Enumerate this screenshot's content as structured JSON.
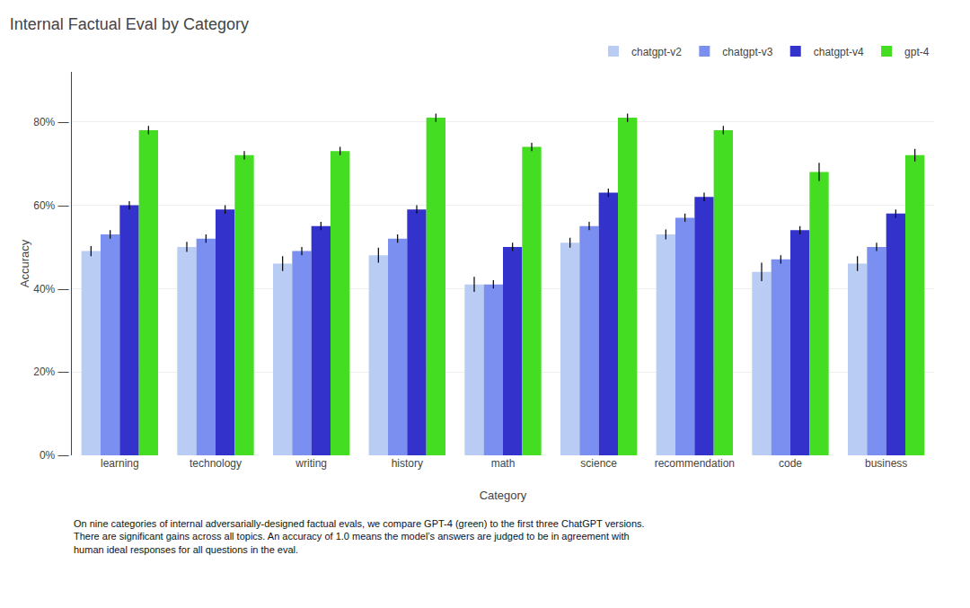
{
  "chart_data": {
    "type": "bar",
    "title": "Internal Factual Eval by Category",
    "xlabel": "Category",
    "ylabel": "Accuracy",
    "categories": [
      "learning",
      "technology",
      "writing",
      "history",
      "math",
      "science",
      "recommendation",
      "code",
      "business"
    ],
    "series": [
      {
        "name": "chatgpt-v2",
        "color": "#b8ccf4",
        "values": [
          0.49,
          0.5,
          0.46,
          0.48,
          0.41,
          0.51,
          0.53,
          0.44,
          0.46
        ],
        "errors": [
          0.012,
          0.012,
          0.018,
          0.018,
          0.018,
          0.012,
          0.012,
          0.022,
          0.018
        ]
      },
      {
        "name": "chatgpt-v3",
        "color": "#7b8ff0",
        "values": [
          0.53,
          0.52,
          0.49,
          0.52,
          0.41,
          0.55,
          0.57,
          0.47,
          0.5
        ],
        "errors": [
          0.01,
          0.01,
          0.01,
          0.01,
          0.01,
          0.01,
          0.01,
          0.01,
          0.01
        ]
      },
      {
        "name": "chatgpt-v4",
        "color": "#3333cc",
        "values": [
          0.6,
          0.59,
          0.55,
          0.59,
          0.5,
          0.63,
          0.62,
          0.54,
          0.58
        ],
        "errors": [
          0.01,
          0.01,
          0.01,
          0.01,
          0.01,
          0.01,
          0.01,
          0.01,
          0.01
        ]
      },
      {
        "name": "gpt-4",
        "color": "#44dd22",
        "values": [
          0.78,
          0.72,
          0.73,
          0.81,
          0.74,
          0.81,
          0.78,
          0.68,
          0.72
        ],
        "errors": [
          0.01,
          0.01,
          0.01,
          0.01,
          0.01,
          0.01,
          0.01,
          0.022,
          0.015
        ]
      }
    ],
    "ylim": [
      0,
      0.92
    ],
    "yticks": [
      {
        "value": 0.0,
        "label": "0% —"
      },
      {
        "value": 0.2,
        "label": "20% —"
      },
      {
        "value": 0.4,
        "label": "40% —"
      },
      {
        "value": 0.6,
        "label": "60% —"
      },
      {
        "value": 0.8,
        "label": "80% —"
      }
    ],
    "grid": true,
    "legend": "upper right",
    "annotations": [
      "On nine categories of internal adversarially-designed factual evals, we compare GPT-4 (green) to the first three ChatGPT versions.\nThere are significant gains across all topics. An accuracy of 1.0 means the model’s answers are judged to be in agreement with\nhuman ideal responses for all questions in the eval."
    ]
  }
}
